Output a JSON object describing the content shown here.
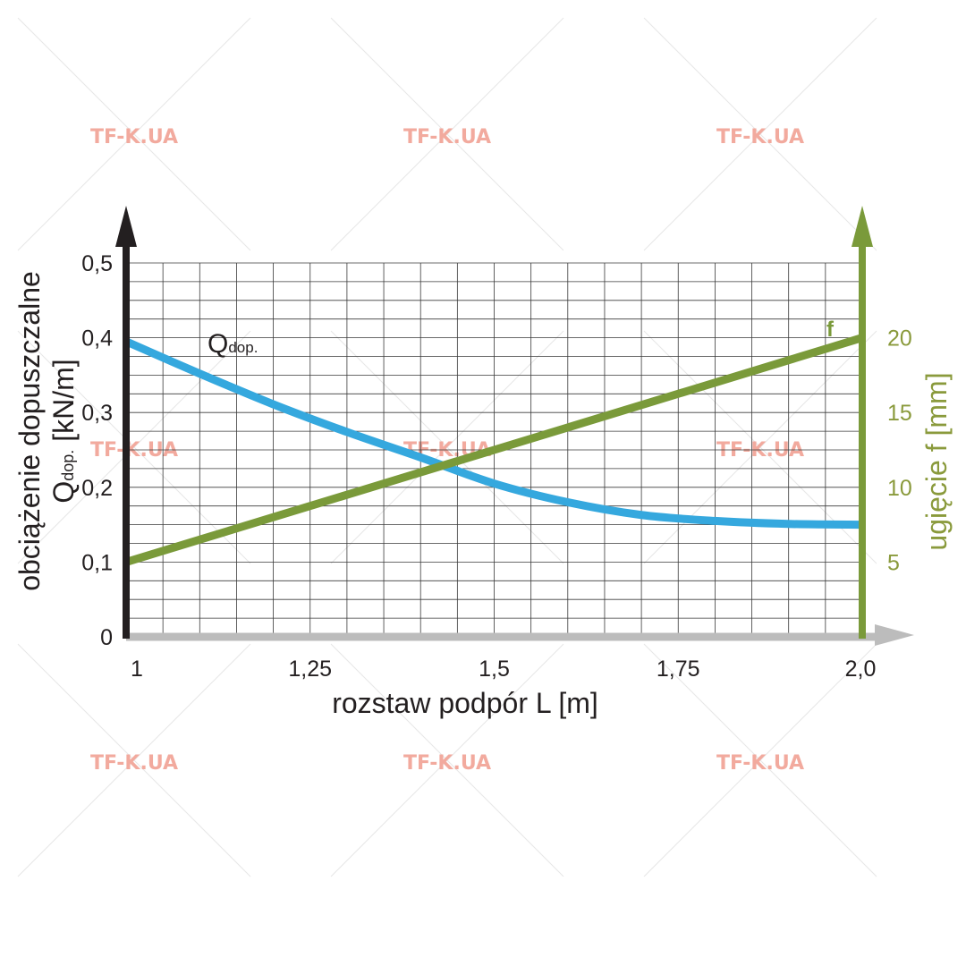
{
  "chart_data": {
    "type": "line",
    "x": [
      1,
      1.1,
      1.2,
      1.3,
      1.4,
      1.5,
      1.6,
      1.7,
      1.8,
      1.9,
      2.0
    ],
    "xlabel": "rozstaw podpór L [m]",
    "xticks": [
      1,
      1.25,
      1.5,
      1.75,
      2.0
    ],
    "xtick_labels": [
      "1",
      "1,25",
      "1,5",
      "1,75",
      "2,0"
    ],
    "xlim": [
      1,
      2.0
    ],
    "ylabel_left": {
      "line1": "obciążenie dopuszczalne",
      "main": "Q",
      "sub": "dop.",
      "unit": " [kN/m]"
    },
    "ylim_left": [
      0,
      0.5
    ],
    "yticks_left": [
      0,
      0.1,
      0.2,
      0.3,
      0.4,
      0.5
    ],
    "ytick_labels_left": [
      "0",
      "0,1",
      "0,2",
      "0,3",
      "0,4",
      "0,5"
    ],
    "ylabel_right": "ugięcie f [mm]",
    "ylim_right": [
      0,
      25
    ],
    "yticks_right": [
      5,
      10,
      15,
      20
    ],
    "ytick_labels_right": [
      "5",
      "10",
      "15",
      "20"
    ],
    "grid": true,
    "series": [
      {
        "name": "Q",
        "name_sub": "dop.",
        "axis": "left",
        "color": "#35a8de",
        "values": [
          0.395,
          0.352,
          0.311,
          0.274,
          0.24,
          0.205,
          0.18,
          0.163,
          0.155,
          0.151,
          0.15
        ]
      },
      {
        "name": "f",
        "axis": "right",
        "color": "#7a9a3a",
        "values": [
          5.0,
          6.5,
          8.0,
          9.5,
          11.0,
          12.5,
          14.0,
          15.5,
          17.0,
          18.5,
          20.0
        ]
      }
    ]
  },
  "watermark": "TF-K.UA",
  "colors": {
    "left_axis": "#231f20",
    "right_axis": "#7a9a3a",
    "x_axis": "#bcbcbc",
    "grid": "#3a3a3a",
    "watermark": "#f2aa9e"
  }
}
